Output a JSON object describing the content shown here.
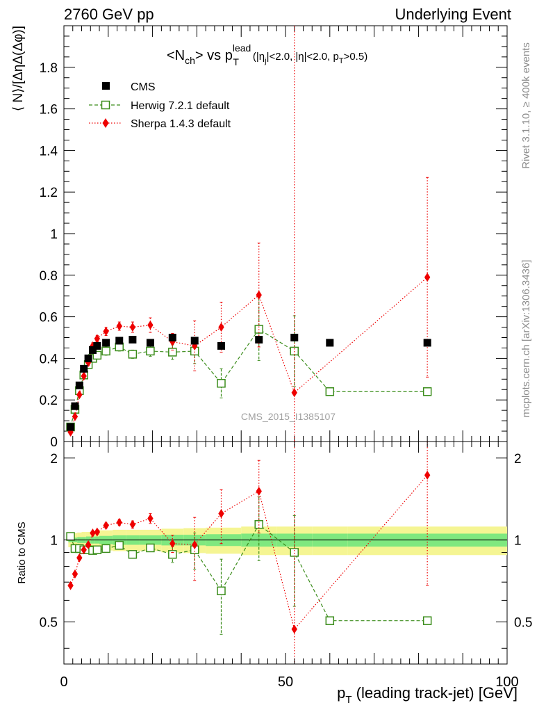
{
  "header": {
    "left": "2760 GeV pp",
    "right": "Underlying Event"
  },
  "side": {
    "rivet": "Rivet 3.1.10, ≥ 400k events",
    "mcplots": "mcplots.cern.ch [arXiv:1306.3436]"
  },
  "chart_data": [
    {
      "type": "scatter",
      "title": {
        "lead": "<N",
        "lead_sub": "ch",
        "mid": "> vs p",
        "mid_sup": "lead",
        "mid_sub": "T",
        "cuts_1": "(|η",
        "cuts_1_sub": "j",
        "cuts_2": "|<2.0, |η|<2.0, p",
        "cuts_2_sub": "T",
        "cuts_3": ">0.5)"
      },
      "ylabel": "⟨ N⟩/[ΔηΔ(Δφ)]",
      "xlim": [
        0,
        100
      ],
      "ylim": [
        0,
        2.0
      ],
      "yticks": [
        0,
        0.2,
        0.4,
        0.6,
        0.8,
        1,
        1.2,
        1.4,
        1.6,
        1.8
      ],
      "ytick_labels": [
        "0",
        "0.2",
        "0.4",
        "0.6",
        "0.8",
        "1",
        "1.2",
        "1.4",
        "1.6",
        "1.8"
      ],
      "watermark": "CMS_2015_I1385107",
      "legend_position": "top-left",
      "series": [
        {
          "name": "CMS",
          "color": "#000000",
          "marker": "filled-square",
          "x": [
            1.5,
            2.5,
            3.5,
            4.5,
            5.5,
            6.5,
            7.5,
            9.5,
            12.5,
            15.5,
            19.5,
            24.5,
            29.5,
            35.5,
            44,
            52,
            60,
            82
          ],
          "y": [
            0.07,
            0.17,
            0.27,
            0.35,
            0.4,
            0.44,
            0.46,
            0.475,
            0.485,
            0.49,
            0.475,
            0.5,
            0.485,
            0.46,
            0.49,
            0.5,
            0.475,
            0.475
          ]
        },
        {
          "name": "Herwig 7.2.1 default",
          "color": "#3a8c1a",
          "marker": "open-square",
          "line": "dashed",
          "x": [
            1.5,
            2.5,
            3.5,
            4.5,
            5.5,
            6.5,
            7.5,
            9.5,
            12.5,
            15.5,
            19.5,
            24.5,
            29.5,
            35.5,
            44,
            52,
            60,
            82
          ],
          "y": [
            0.07,
            0.155,
            0.245,
            0.32,
            0.37,
            0.4,
            0.415,
            0.435,
            0.455,
            0.42,
            0.435,
            0.43,
            0.435,
            0.28,
            0.54,
            0.435,
            0.24,
            0.24
          ],
          "err": [
            0.01,
            0.01,
            0.01,
            0.01,
            0.015,
            0.015,
            0.015,
            0.02,
            0.02,
            0.02,
            0.025,
            0.035,
            0.06,
            0.07,
            0.15,
            0.17,
            0,
            0
          ]
        },
        {
          "name": "Sherpa 1.4.3 default",
          "color": "#ee0000",
          "marker": "filled-diamond",
          "line": "dotted",
          "x": [
            1.5,
            2.5,
            3.5,
            4.5,
            5.5,
            6.5,
            7.5,
            9.5,
            12.5,
            15.5,
            19.5,
            24.5,
            29.5,
            35.5,
            44,
            52,
            82
          ],
          "y": [
            0.045,
            0.12,
            0.225,
            0.315,
            0.38,
            0.46,
            0.495,
            0.53,
            0.555,
            0.55,
            0.56,
            0.48,
            0.46,
            0.55,
            0.705,
            0.235,
            0.79
          ],
          "err": [
            0.005,
            0.01,
            0.01,
            0.01,
            0.015,
            0.015,
            0.015,
            0.02,
            0.02,
            0.025,
            0.035,
            0.04,
            0.12,
            0.12,
            0.25,
            1.8,
            0.48
          ]
        }
      ]
    },
    {
      "type": "scatter",
      "ylabel": "Ratio to CMS",
      "xlabel": "p",
      "xlabel_sub": "T",
      "xlabel_rest": " (leading track-jet) [GeV]",
      "xlim": [
        0,
        100
      ],
      "xticks": [
        0,
        50,
        100
      ],
      "xtick_labels": [
        "0",
        "50",
        "100"
      ],
      "ylim": [
        0.35,
        2.3
      ],
      "ytick_labels": [
        "0.5",
        "1",
        "2"
      ],
      "yticks": [
        0.5,
        1,
        2
      ],
      "bands": {
        "inner_color": "#7fe87f",
        "outer_color": "#f5f593",
        "edges": [
          1,
          2,
          3,
          4,
          5,
          6,
          7,
          8,
          11,
          14,
          17,
          22,
          27,
          32,
          40,
          48,
          56,
          64,
          100
        ],
        "inner": [
          0.02,
          0.02,
          0.025,
          0.025,
          0.03,
          0.03,
          0.03,
          0.035,
          0.04,
          0.04,
          0.04,
          0.045,
          0.045,
          0.05,
          0.055,
          0.055,
          0.055,
          0.055
        ],
        "outer": [
          0.06,
          0.06,
          0.065,
          0.07,
          0.07,
          0.075,
          0.08,
          0.085,
          0.09,
          0.09,
          0.09,
          0.1,
          0.105,
          0.11,
          0.12,
          0.12,
          0.12,
          0.12
        ]
      },
      "series": [
        {
          "name": "Herwig 7.2.1 default",
          "color": "#3a8c1a",
          "x": [
            1.5,
            2.5,
            3.5,
            4.5,
            5.5,
            6.5,
            7.5,
            9.5,
            12.5,
            15.5,
            19.5,
            24.5,
            29.5,
            35.5,
            44,
            52,
            60,
            82
          ],
          "y": [
            1.03,
            0.93,
            0.93,
            0.92,
            0.92,
            0.915,
            0.92,
            0.93,
            0.955,
            0.885,
            0.935,
            0.885,
            0.92,
            0.65,
            1.14,
            0.9,
            0.505,
            0.505
          ],
          "err": [
            0.01,
            0.01,
            0.01,
            0.01,
            0.015,
            0.015,
            0.015,
            0.02,
            0.02,
            0.02,
            0.025,
            0.06,
            0.14,
            0.2,
            0.3,
            0.33,
            0,
            0
          ]
        },
        {
          "name": "Sherpa 1.4.3 default",
          "color": "#ee0000",
          "x": [
            1.5,
            2.5,
            3.5,
            4.5,
            5.5,
            6.5,
            7.5,
            9.5,
            12.5,
            15.5,
            19.5,
            24.5,
            29.5,
            35.5,
            44,
            52,
            82
          ],
          "y": [
            0.68,
            0.75,
            0.86,
            0.92,
            0.96,
            1.06,
            1.07,
            1.13,
            1.16,
            1.14,
            1.2,
            0.97,
            0.96,
            1.25,
            1.51,
            0.47,
            1.73
          ],
          "err": [
            0.01,
            0.01,
            0.01,
            0.015,
            0.02,
            0.02,
            0.02,
            0.025,
            0.03,
            0.035,
            0.05,
            0.07,
            0.25,
            0.28,
            0.45,
            3.0,
            1.05
          ]
        }
      ]
    }
  ]
}
